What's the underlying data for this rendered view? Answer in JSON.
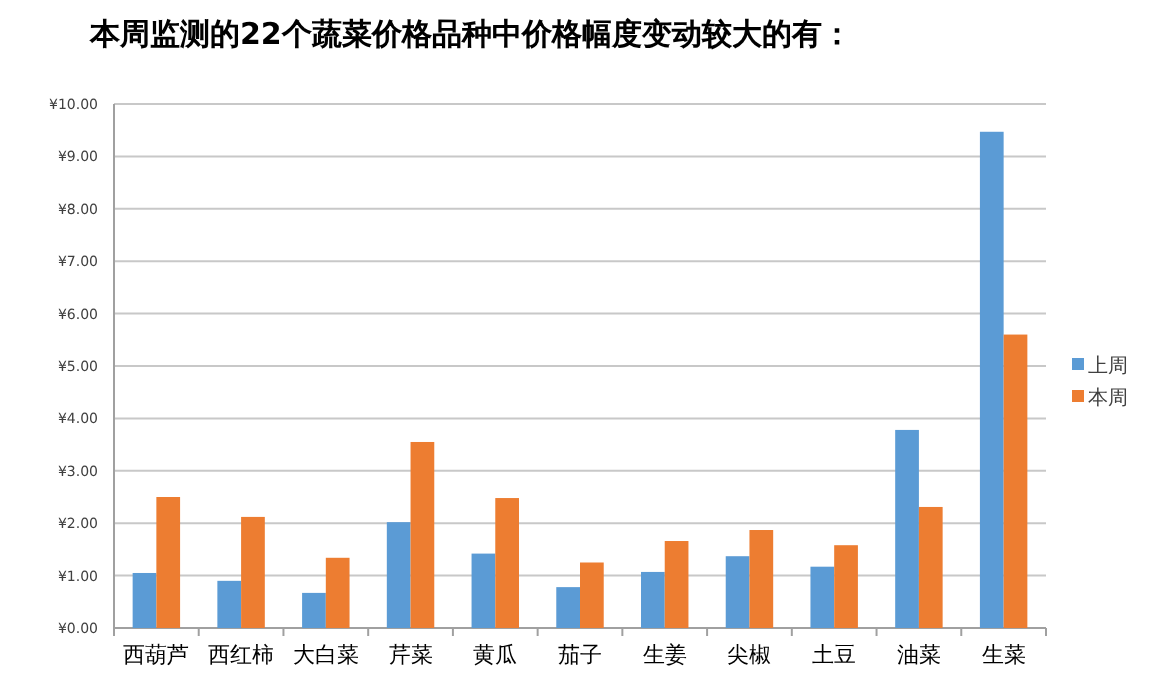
{
  "chart_data": {
    "type": "bar",
    "title": "本周监测的22个蔬菜价格品种中价格幅度变动较大的有：",
    "categories": [
      "西葫芦",
      "西红柿",
      "大白菜",
      "芹菜",
      "黄瓜",
      "茄子",
      "生姜",
      "尖椒",
      "土豆",
      "油菜",
      "生菜"
    ],
    "series": [
      {
        "name": "上周",
        "color": "#5b9bd5",
        "values": [
          1.05,
          0.9,
          0.67,
          2.02,
          1.42,
          0.78,
          1.07,
          1.37,
          1.17,
          3.78,
          9.47
        ]
      },
      {
        "name": "本周",
        "color": "#ed7d31",
        "values": [
          2.5,
          2.12,
          1.34,
          3.55,
          2.48,
          1.25,
          1.66,
          1.87,
          1.58,
          2.31,
          5.6
        ]
      }
    ],
    "ylim": [
      0,
      10
    ],
    "yticks": [
      {
        "value": 0,
        "label": "¥0.00"
      },
      {
        "value": 1,
        "label": "¥1.00"
      },
      {
        "value": 2,
        "label": "¥2.00"
      },
      {
        "value": 3,
        "label": "¥3.00"
      },
      {
        "value": 4,
        "label": "¥4.00"
      },
      {
        "value": 5,
        "label": "¥5.00"
      },
      {
        "value": 6,
        "label": "¥6.00"
      },
      {
        "value": 7,
        "label": "¥7.00"
      },
      {
        "value": 8,
        "label": "¥8.00"
      },
      {
        "value": 9,
        "label": "¥9.00"
      },
      {
        "value": 10,
        "label": "¥10.00"
      }
    ],
    "grid": "y",
    "legend": "right"
  }
}
